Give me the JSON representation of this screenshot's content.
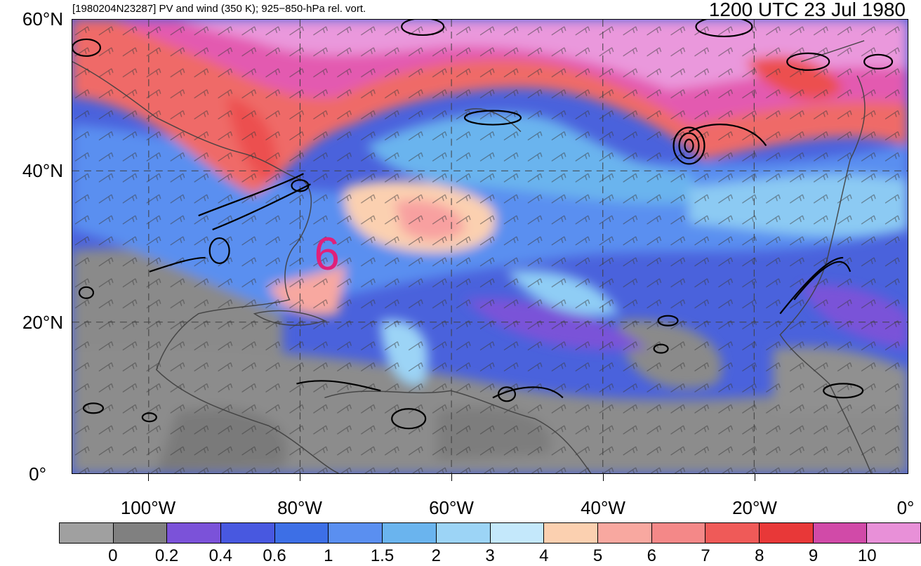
{
  "header": {
    "left_title": "[1980204N23287] PV and wind (350 K); 925−850-hPa rel. vort.",
    "right_title": "1200 UTC 23 Jul 1980"
  },
  "axes": {
    "lat_labels": [
      "60°N",
      "40°N",
      "20°N",
      "0°"
    ],
    "lon_labels": [
      "100°W",
      "80°W",
      "60°W",
      "40°W",
      "20°W",
      "0°"
    ]
  },
  "storm_symbol": "6",
  "colorbar": {
    "labels": [
      "0",
      "0.2",
      "0.4",
      "0.6",
      "1",
      "1.5",
      "2",
      "3",
      "4",
      "5",
      "6",
      "7",
      "8",
      "9",
      "10"
    ],
    "colors": [
      "#a0a0a0",
      "#808080",
      "#7b52d9",
      "#4858e0",
      "#3d6fe6",
      "#5a8ff0",
      "#6ab4ee",
      "#9cd4f6",
      "#c4e8fb",
      "#fbd0b0",
      "#f8a8a0",
      "#f48888",
      "#ef5a58",
      "#e83838",
      "#d14aa8",
      "#e890d8"
    ]
  },
  "colors": {
    "storm_symbol": "#e0207a",
    "contour": "#000000",
    "border": "#404040"
  }
}
